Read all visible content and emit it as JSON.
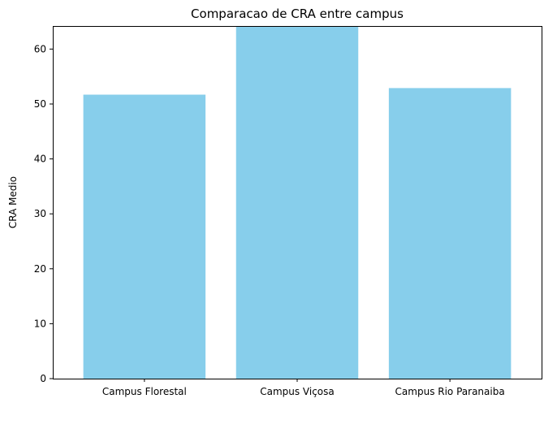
{
  "chart_data": {
    "type": "bar",
    "title": "Comparacao de CRA entre campus",
    "xlabel": "",
    "ylabel": "CRA Medio",
    "categories": [
      "Campus Florestal",
      "Campus Viçosa",
      "Campus Rio Paranaiba"
    ],
    "values": [
      51.7,
      64.2,
      52.9
    ],
    "ylim": [
      0,
      64.2
    ],
    "yticks": [
      0,
      10,
      20,
      30,
      40,
      50,
      60
    ],
    "bar_color": "#87ceeb",
    "grid": false,
    "legend": "none"
  }
}
